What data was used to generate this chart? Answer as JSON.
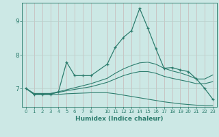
{
  "xlabel": "Humidex (Indice chaleur)",
  "background_color": "#cce8e5",
  "grid_color": "#b0d8d4",
  "line_color": "#2d7d6e",
  "xlim": [
    -0.5,
    23.5
  ],
  "ylim": [
    6.45,
    9.55
  ],
  "yticks": [
    7,
    8,
    9
  ],
  "xtick_labels": [
    "0",
    "1",
    "2",
    "3",
    "4",
    "5",
    "6",
    "7",
    "8",
    "10",
    "11",
    "12",
    "13",
    "14",
    "15",
    "16",
    "17",
    "18",
    "19",
    "20",
    "21",
    "22",
    "23"
  ],
  "xtick_pos": [
    0,
    1,
    2,
    3,
    4,
    5,
    6,
    7,
    8,
    10,
    11,
    12,
    13,
    14,
    15,
    16,
    17,
    18,
    19,
    20,
    21,
    22,
    23
  ],
  "series": [
    {
      "x": [
        0,
        1,
        2,
        3,
        4,
        5,
        6,
        7,
        8,
        10,
        11,
        12,
        13,
        14,
        15,
        16,
        17,
        18,
        19,
        20,
        21,
        22,
        23
      ],
      "y": [
        7.0,
        6.82,
        6.82,
        6.82,
        6.9,
        7.78,
        7.38,
        7.38,
        7.38,
        7.72,
        8.22,
        8.52,
        8.72,
        9.38,
        8.8,
        8.18,
        7.6,
        7.62,
        7.55,
        7.5,
        7.28,
        7.0,
        6.68
      ],
      "marker": true
    },
    {
      "x": [
        0,
        1,
        2,
        3,
        4,
        5,
        6,
        7,
        8,
        10,
        11,
        12,
        13,
        14,
        15,
        16,
        17,
        18,
        19,
        20,
        21,
        22,
        23
      ],
      "y": [
        7.0,
        6.85,
        6.85,
        6.85,
        6.9,
        6.96,
        7.02,
        7.08,
        7.14,
        7.3,
        7.45,
        7.58,
        7.68,
        7.76,
        7.78,
        7.72,
        7.6,
        7.52,
        7.46,
        7.38,
        7.28,
        7.28,
        7.4
      ],
      "marker": false
    },
    {
      "x": [
        0,
        1,
        2,
        3,
        4,
        5,
        6,
        7,
        8,
        10,
        11,
        12,
        13,
        14,
        15,
        16,
        17,
        18,
        19,
        20,
        21,
        22,
        23
      ],
      "y": [
        7.0,
        6.84,
        6.84,
        6.84,
        6.88,
        6.93,
        6.97,
        7.01,
        7.05,
        7.18,
        7.28,
        7.38,
        7.45,
        7.5,
        7.5,
        7.45,
        7.36,
        7.3,
        7.25,
        7.2,
        7.14,
        7.14,
        7.2
      ],
      "marker": false
    },
    {
      "x": [
        0,
        1,
        2,
        3,
        4,
        5,
        6,
        7,
        8,
        10,
        11,
        12,
        13,
        14,
        15,
        16,
        17,
        18,
        19,
        20,
        21,
        22,
        23
      ],
      "y": [
        7.0,
        6.82,
        6.82,
        6.82,
        6.82,
        6.84,
        6.85,
        6.86,
        6.87,
        6.87,
        6.84,
        6.8,
        6.76,
        6.72,
        6.68,
        6.64,
        6.6,
        6.57,
        6.54,
        6.52,
        6.5,
        6.48,
        6.48
      ],
      "marker": false
    }
  ]
}
